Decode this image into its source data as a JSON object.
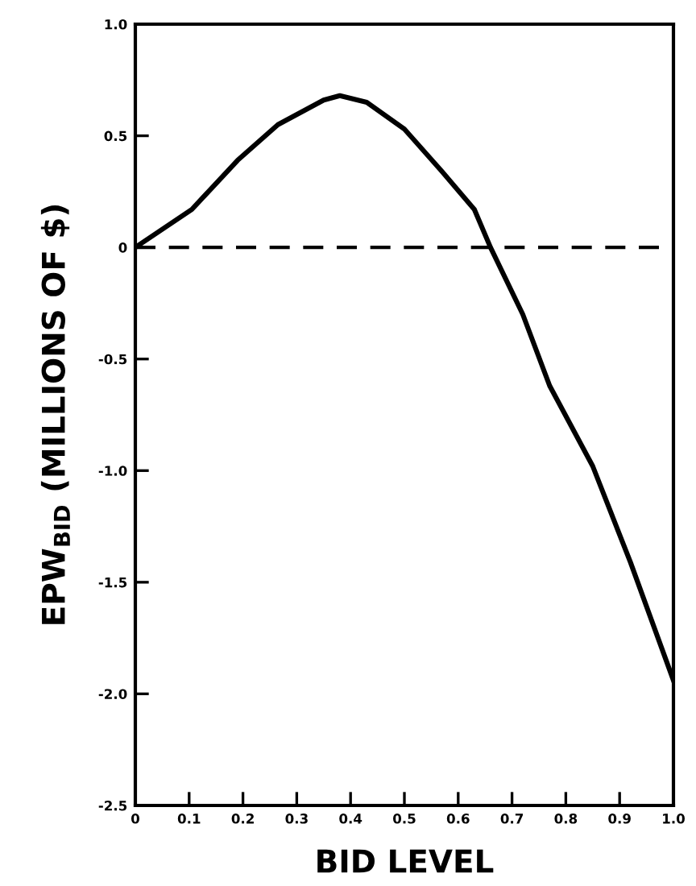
{
  "chart_data": {
    "type": "line",
    "xlabel": "BID LEVEL",
    "ylabel": "EPW$_{BID}$ (MILLIONS OF $)",
    "x": [
      0,
      0.105,
      0.19,
      0.265,
      0.35,
      0.38,
      0.43,
      0.5,
      0.57,
      0.63,
      0.66,
      0.72,
      0.77,
      0.85,
      0.92,
      1.0
    ],
    "series": [
      {
        "color": "#000000",
        "values": [
          0,
          0.17,
          0.39,
          0.55,
          0.66,
          0.68,
          0.65,
          0.53,
          0.34,
          0.17,
          0,
          -0.3,
          -0.62,
          -0.98,
          -1.41,
          -1.94
        ]
      }
    ],
    "xlim": [
      0,
      1.0
    ],
    "ylim": [
      -2.5,
      1.0
    ],
    "xticks": [
      0,
      0.1,
      0.2,
      0.3,
      0.4,
      0.5,
      0.6,
      0.7,
      0.8,
      0.9,
      {
        "value": 1.0,
        "label": "1.0"
      }
    ],
    "yticks": [
      {
        "value": -2.5,
        "label": "-2.5"
      },
      {
        "value": -2.0,
        "label": "-2.0"
      },
      {
        "value": -1.5,
        "label": "-1.5"
      },
      {
        "value": -1.0,
        "label": "-1.0"
      },
      {
        "value": -0.5,
        "label": "-0.5"
      },
      0,
      0.5,
      {
        "value": 1.0,
        "label": "1.0"
      }
    ],
    "ref_lines": [
      {
        "axis": "y",
        "value": 0,
        "color": "#000000",
        "line_style": "dashed"
      }
    ],
    "grid": false,
    "legend": false,
    "marker": "none",
    "line_style": "solid"
  }
}
